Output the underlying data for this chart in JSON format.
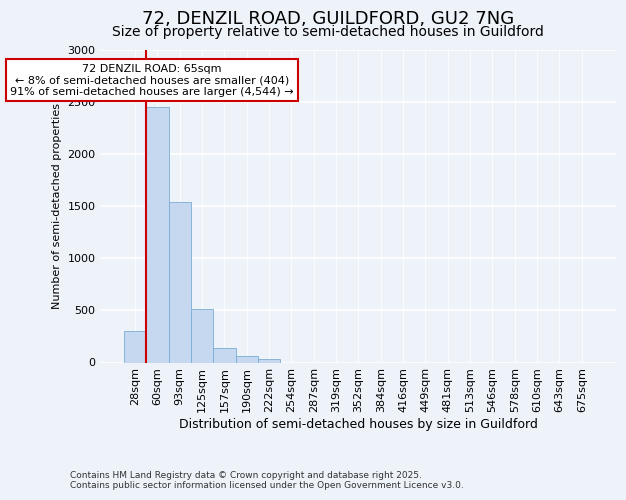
{
  "title_line1": "72, DENZIL ROAD, GUILDFORD, GU2 7NG",
  "title_line2": "Size of property relative to semi-detached houses in Guildford",
  "xlabel": "Distribution of semi-detached houses by size in Guildford",
  "ylabel": "Number of semi-detached properties",
  "annotation_line1": "72 DENZIL ROAD: 65sqm",
  "annotation_line2": "← 8% of semi-detached houses are smaller (404)",
  "annotation_line3": "91% of semi-detached houses are larger (4,544) →",
  "bar_categories": [
    "28sqm",
    "60sqm",
    "93sqm",
    "125sqm",
    "157sqm",
    "190sqm",
    "222sqm",
    "254sqm",
    "287sqm",
    "319sqm",
    "352sqm",
    "384sqm",
    "416sqm",
    "449sqm",
    "481sqm",
    "513sqm",
    "546sqm",
    "578sqm",
    "610sqm",
    "643sqm",
    "675sqm"
  ],
  "bar_values": [
    305,
    2455,
    1545,
    515,
    140,
    60,
    30,
    0,
    0,
    0,
    0,
    0,
    0,
    0,
    0,
    0,
    0,
    0,
    0,
    0,
    0
  ],
  "bar_color": "#c5d8f0",
  "bar_edge_color": "#7aadd4",
  "vline_color": "#cc0000",
  "annotation_box_edge_color": "#cc0000",
  "annotation_box_face_color": "#ffffff",
  "background_color": "#eef2f9",
  "grid_color": "#ffffff",
  "ylim": [
    0,
    3000
  ],
  "yticks": [
    0,
    500,
    1000,
    1500,
    2000,
    2500,
    3000
  ],
  "title1_fontsize": 13,
  "title2_fontsize": 10,
  "ylabel_fontsize": 8,
  "xlabel_fontsize": 9,
  "tick_fontsize": 8,
  "annot_fontsize": 8,
  "footer_fontsize": 6.5,
  "footer_line1": "Contains HM Land Registry data © Crown copyright and database right 2025.",
  "footer_line2": "Contains public sector information licensed under the Open Government Licence v3.0."
}
